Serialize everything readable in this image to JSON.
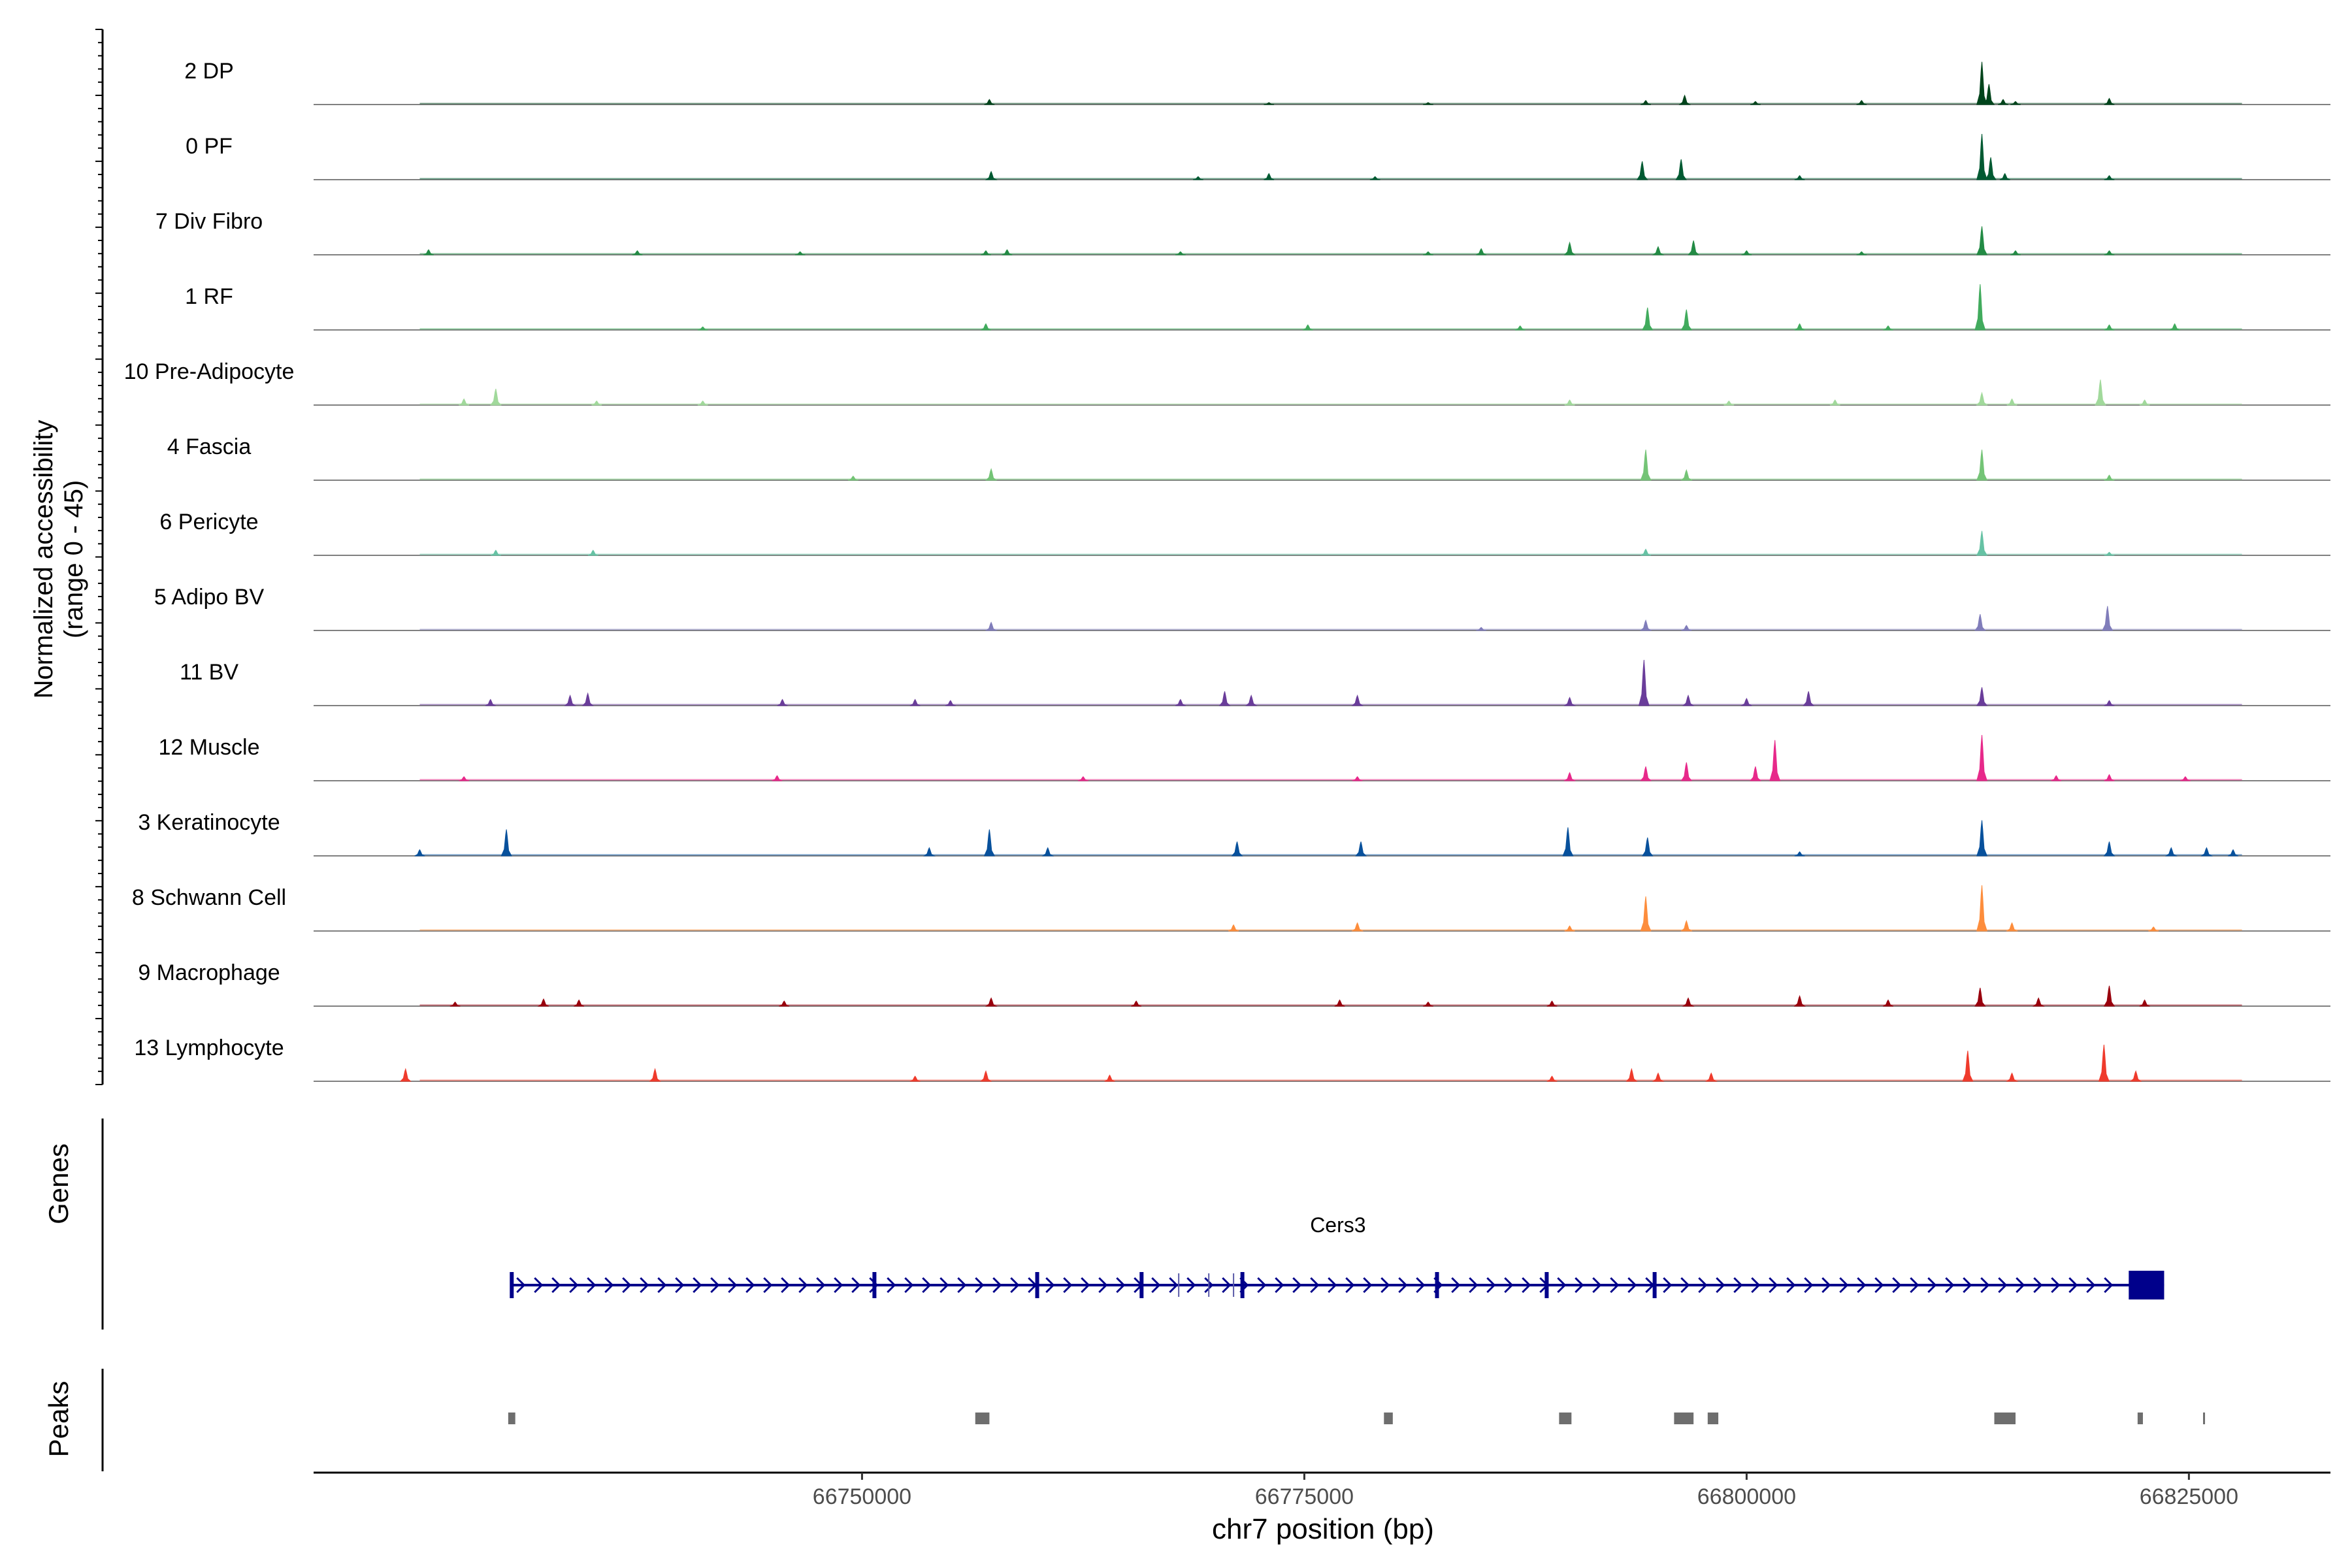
{
  "chart_data": {
    "type": "area",
    "title": "",
    "ylabel_line1": "Normalized accessibility",
    "ylabel_line2": "(range 0 - 45)",
    "xlabel": "chr7 position (bp)",
    "y_range": [
      0,
      45
    ],
    "x_range": [
      66719000,
      66833000
    ],
    "x_ticks": [
      66750000,
      66775000,
      66800000,
      66825000
    ],
    "x_tick_labels": [
      "66750000",
      "66775000",
      "66800000",
      "66825000"
    ],
    "tracks": [
      {
        "name": "2 DP",
        "color": "#00441b",
        "peaks": [
          [
            66757200,
            5
          ],
          [
            66773000,
            2
          ],
          [
            66782000,
            2
          ],
          [
            66794300,
            4
          ],
          [
            66796500,
            9
          ],
          [
            66800500,
            3
          ],
          [
            66806500,
            4
          ],
          [
            66813300,
            42
          ],
          [
            66813700,
            20
          ],
          [
            66814500,
            5
          ],
          [
            66815200,
            3
          ],
          [
            66820500,
            6
          ]
        ]
      },
      {
        "name": "0 PF",
        "color": "#005a32",
        "peaks": [
          [
            66757300,
            8
          ],
          [
            66769000,
            3
          ],
          [
            66773000,
            6
          ],
          [
            66779000,
            3
          ],
          [
            66794100,
            18
          ],
          [
            66796300,
            20
          ],
          [
            66803000,
            4
          ],
          [
            66813300,
            45
          ],
          [
            66813800,
            22
          ],
          [
            66814600,
            6
          ],
          [
            66820500,
            4
          ]
        ]
      },
      {
        "name": "7 Div Fibro",
        "color": "#238b45",
        "peaks": [
          [
            66725500,
            5
          ],
          [
            66737300,
            4
          ],
          [
            66746500,
            3
          ],
          [
            66757000,
            4
          ],
          [
            66758200,
            5
          ],
          [
            66768000,
            3
          ],
          [
            66782000,
            3
          ],
          [
            66785000,
            6
          ],
          [
            66790000,
            12
          ],
          [
            66795000,
            8
          ],
          [
            66797000,
            14
          ],
          [
            66800000,
            4
          ],
          [
            66806500,
            3
          ],
          [
            66813300,
            28
          ],
          [
            66815200,
            4
          ],
          [
            66820500,
            4
          ]
        ]
      },
      {
        "name": "1 RF",
        "color": "#41ab5d",
        "peaks": [
          [
            66741000,
            3
          ],
          [
            66757000,
            6
          ],
          [
            66775200,
            5
          ],
          [
            66787200,
            4
          ],
          [
            66794400,
            22
          ],
          [
            66796600,
            20
          ],
          [
            66803000,
            6
          ],
          [
            66808000,
            4
          ],
          [
            66813200,
            45
          ],
          [
            66820500,
            5
          ],
          [
            66824200,
            6
          ]
        ]
      },
      {
        "name": "10 Pre-Adipocyte",
        "color": "#a1d99b",
        "peaks": [
          [
            66727500,
            6
          ],
          [
            66729300,
            16
          ],
          [
            66735000,
            4
          ],
          [
            66741000,
            4
          ],
          [
            66790000,
            5
          ],
          [
            66799000,
            4
          ],
          [
            66805000,
            5
          ],
          [
            66813300,
            12
          ],
          [
            66815000,
            6
          ],
          [
            66820000,
            25
          ],
          [
            66822500,
            5
          ]
        ]
      },
      {
        "name": "4 Fascia",
        "color": "#74c476",
        "peaks": [
          [
            66749500,
            4
          ],
          [
            66757300,
            11
          ],
          [
            66794300,
            30
          ],
          [
            66796600,
            10
          ],
          [
            66813300,
            30
          ],
          [
            66820500,
            5
          ]
        ]
      },
      {
        "name": "6 Pericyte",
        "color": "#66c2a4",
        "peaks": [
          [
            66729300,
            5
          ],
          [
            66734800,
            5
          ],
          [
            66794300,
            6
          ],
          [
            66813300,
            24
          ],
          [
            66820500,
            3
          ]
        ]
      },
      {
        "name": "5 Adipo BV",
        "color": "#807dba",
        "peaks": [
          [
            66757300,
            8
          ],
          [
            66785000,
            3
          ],
          [
            66794300,
            10
          ],
          [
            66796600,
            5
          ],
          [
            66813200,
            16
          ],
          [
            66820400,
            24
          ]
        ]
      },
      {
        "name": "11 BV",
        "color": "#6a3d9a",
        "peaks": [
          [
            66729000,
            6
          ],
          [
            66733500,
            10
          ],
          [
            66734500,
            12
          ],
          [
            66745500,
            6
          ],
          [
            66753000,
            6
          ],
          [
            66755000,
            5
          ],
          [
            66768000,
            6
          ],
          [
            66770500,
            14
          ],
          [
            66772000,
            10
          ],
          [
            66778000,
            10
          ],
          [
            66790000,
            8
          ],
          [
            66794200,
            45
          ],
          [
            66796700,
            10
          ],
          [
            66800000,
            7
          ],
          [
            66803500,
            14
          ],
          [
            66813300,
            18
          ],
          [
            66820500,
            5
          ]
        ]
      },
      {
        "name": "12 Muscle",
        "color": "#e7298a",
        "peaks": [
          [
            66727500,
            4
          ],
          [
            66745200,
            5
          ],
          [
            66762500,
            4
          ],
          [
            66778000,
            4
          ],
          [
            66790000,
            8
          ],
          [
            66794300,
            14
          ],
          [
            66796600,
            18
          ],
          [
            66800500,
            14
          ],
          [
            66801600,
            40
          ],
          [
            66813300,
            45
          ],
          [
            66817500,
            5
          ],
          [
            66820500,
            6
          ],
          [
            66824800,
            4
          ]
        ]
      },
      {
        "name": "3 Keratinocyte",
        "color": "#08519c",
        "peaks": [
          [
            66725000,
            6
          ],
          [
            66729900,
            26
          ],
          [
            66753800,
            8
          ],
          [
            66757200,
            26
          ],
          [
            66760500,
            8
          ],
          [
            66771200,
            14
          ],
          [
            66778200,
            14
          ],
          [
            66789900,
            28
          ],
          [
            66794400,
            18
          ],
          [
            66803000,
            4
          ],
          [
            66813300,
            35
          ],
          [
            66820500,
            14
          ],
          [
            66824000,
            8
          ],
          [
            66826000,
            8
          ],
          [
            66827500,
            6
          ]
        ]
      },
      {
        "name": "8 Schwann Cell",
        "color": "#fd8d3c",
        "peaks": [
          [
            66771000,
            6
          ],
          [
            66778000,
            8
          ],
          [
            66790000,
            5
          ],
          [
            66794300,
            34
          ],
          [
            66796600,
            10
          ],
          [
            66813300,
            45
          ],
          [
            66815000,
            8
          ],
          [
            66823000,
            4
          ]
        ]
      },
      {
        "name": "9 Macrophage",
        "color": "#99000d",
        "peaks": [
          [
            66727000,
            4
          ],
          [
            66732000,
            7
          ],
          [
            66734000,
            6
          ],
          [
            66745600,
            5
          ],
          [
            66757300,
            8
          ],
          [
            66765500,
            5
          ],
          [
            66777000,
            6
          ],
          [
            66782000,
            4
          ],
          [
            66789000,
            5
          ],
          [
            66796700,
            8
          ],
          [
            66803000,
            10
          ],
          [
            66808000,
            6
          ],
          [
            66813200,
            18
          ],
          [
            66816500,
            8
          ],
          [
            66820500,
            20
          ],
          [
            66822500,
            6
          ]
        ]
      },
      {
        "name": "13 Lymphocyte",
        "color": "#ef3b2c",
        "peaks": [
          [
            66724200,
            12
          ],
          [
            66738300,
            12
          ],
          [
            66753000,
            5
          ],
          [
            66757000,
            10
          ],
          [
            66764000,
            6
          ],
          [
            66789000,
            5
          ],
          [
            66793500,
            12
          ],
          [
            66795000,
            8
          ],
          [
            66798000,
            8
          ],
          [
            66812500,
            30
          ],
          [
            66815000,
            8
          ],
          [
            66820200,
            36
          ],
          [
            66822000,
            10
          ]
        ]
      }
    ],
    "genes_label": "Genes",
    "gene": {
      "name": "Cers3",
      "strand": "+",
      "start": 66730200,
      "end": 66823600,
      "exons": [
        66730200,
        66750700,
        66759900,
        66765800,
        66771500,
        66782500,
        66788700,
        66794800
      ],
      "thin_marks": [
        66767900,
        66769600,
        66771000
      ],
      "utr": [
        66821600,
        66823600
      ],
      "color": "#00008b"
    },
    "peaks_label": "Peaks",
    "peak_regions": [
      [
        66730000,
        66730400
      ],
      [
        66756400,
        66757200
      ],
      [
        66779500,
        66780000
      ],
      [
        66789400,
        66790100
      ],
      [
        66795900,
        66797000
      ],
      [
        66797800,
        66798400
      ],
      [
        66814000,
        66815200
      ],
      [
        66822100,
        66822400
      ],
      [
        66825800,
        66825900
      ]
    ],
    "peak_color": "#6e6e6e"
  }
}
